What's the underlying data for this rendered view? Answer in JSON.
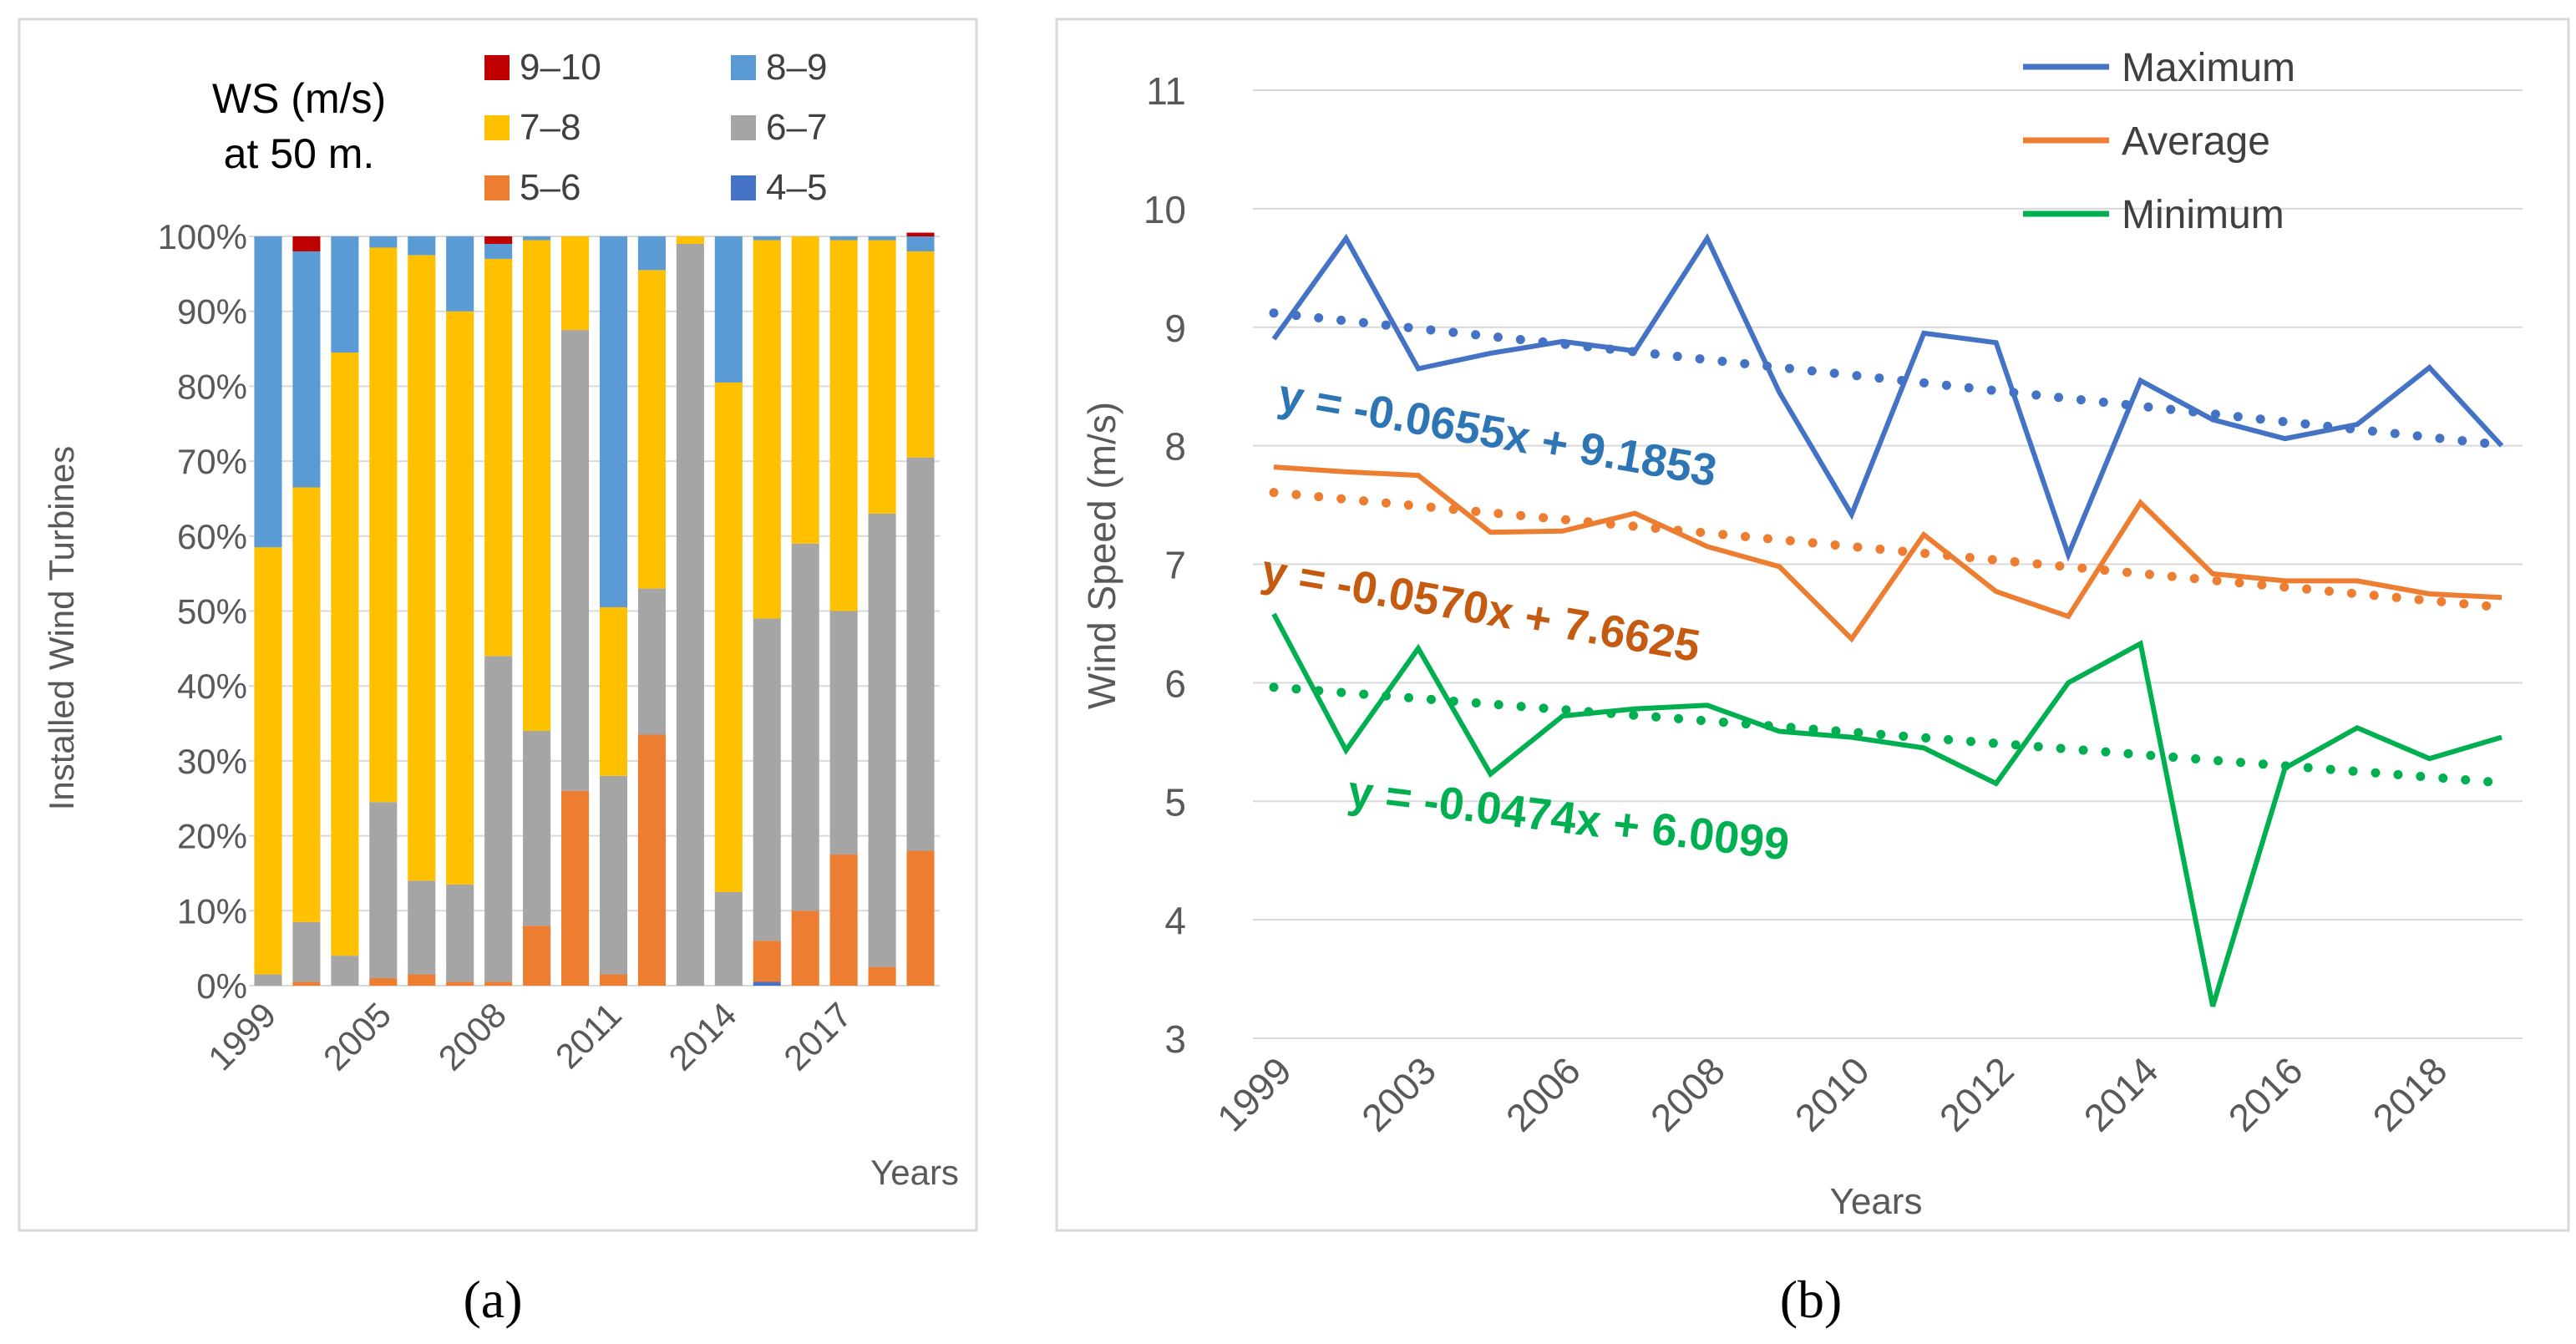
{
  "panel_labels": {
    "a": "(a)",
    "b": "(b)"
  },
  "chart_data": [
    {
      "type": "bar",
      "stacked": true,
      "title": "WS (m/s) at 50 m.",
      "title_lines": [
        "WS (m/s)",
        "at 50 m."
      ],
      "xlabel": "Years",
      "ylabel": "Installed Wind Turbines",
      "ylim": [
        0,
        100
      ],
      "y_ticks": [
        "0%",
        "10%",
        "20%",
        "30%",
        "40%",
        "50%",
        "60%",
        "70%",
        "80%",
        "90%",
        "100%"
      ],
      "x_tick_labels": [
        "1999",
        "2005",
        "2008",
        "2011",
        "2014",
        "2017"
      ],
      "x_tick_indices": [
        0,
        3,
        6,
        9,
        12,
        15
      ],
      "categories": [
        "1999",
        "2001",
        "2003",
        "2005",
        "2006",
        "2007",
        "2008",
        "2009",
        "2010",
        "2011",
        "2012",
        "2013",
        "2014",
        "2015",
        "2016",
        "2017",
        "2018",
        "2019"
      ],
      "legend": [
        {
          "name": "9–10",
          "color": "#c00000"
        },
        {
          "name": "8–9",
          "color": "#5b9bd5"
        },
        {
          "name": "7–8",
          "color": "#ffc000"
        },
        {
          "name": "6–7",
          "color": "#a5a5a5"
        },
        {
          "name": "5–6",
          "color": "#ed7d31"
        },
        {
          "name": "4–5",
          "color": "#4472c4"
        }
      ],
      "series": [
        {
          "name": "4–5",
          "color": "#4472c4",
          "values": [
            0,
            0,
            0,
            0,
            0,
            0,
            0,
            0,
            0,
            0,
            0,
            0,
            0,
            0.5,
            0,
            0,
            0,
            0
          ]
        },
        {
          "name": "5–6",
          "color": "#ed7d31",
          "values": [
            0,
            0.5,
            0,
            1,
            1.5,
            0.5,
            0.5,
            8,
            26,
            1.5,
            33.5,
            0,
            0,
            5.5,
            10,
            17.5,
            2.5,
            18
          ]
        },
        {
          "name": "6–7",
          "color": "#a5a5a5",
          "values": [
            1.5,
            8,
            4,
            23.5,
            12.5,
            13,
            43.5,
            26,
            61.5,
            26.5,
            19.5,
            99,
            12.5,
            43,
            49,
            32.5,
            60.5,
            52.5
          ]
        },
        {
          "name": "7–8",
          "color": "#ffc000",
          "values": [
            57,
            58,
            80.5,
            74,
            83.5,
            76.5,
            53,
            65.5,
            12.5,
            22.5,
            42.5,
            1,
            68,
            50.5,
            41,
            49.5,
            36.5,
            27.5
          ]
        },
        {
          "name": "8–9",
          "color": "#5b9bd5",
          "values": [
            41.5,
            31.5,
            15.5,
            1.5,
            2.5,
            10,
            2,
            0.5,
            0,
            49.5,
            4.5,
            0,
            19.5,
            0.5,
            0,
            0.5,
            0.5,
            2
          ]
        },
        {
          "name": "9–10",
          "color": "#c00000",
          "values": [
            0,
            2,
            0,
            0,
            0,
            0,
            1,
            0,
            0,
            0,
            0,
            0,
            0,
            0,
            0,
            0,
            0,
            0.5
          ]
        }
      ]
    },
    {
      "type": "line",
      "xlabel": "Years",
      "ylabel": "Wind Speed (m/s)",
      "ylim": [
        3,
        11
      ],
      "y_ticks": [
        "3",
        "4",
        "5",
        "6",
        "7",
        "8",
        "9",
        "10",
        "11"
      ],
      "x_tick_labels": [
        "1999",
        "2003",
        "2006",
        "2008",
        "2010",
        "2012",
        "2014",
        "2016",
        "2018"
      ],
      "x_tick_indices": [
        0,
        2,
        4,
        6,
        8,
        10,
        12,
        14,
        16
      ],
      "x": [
        "1999",
        "2001",
        "2003",
        "2005",
        "2006",
        "2007",
        "2008",
        "2009",
        "2010",
        "2011",
        "2012",
        "2013",
        "2014",
        "2015",
        "2016",
        "2017",
        "2018",
        "2019"
      ],
      "series": [
        {
          "name": "Maximum",
          "color": "#4472c4",
          "values": [
            8.9,
            9.75,
            8.65,
            8.78,
            8.88,
            8.8,
            9.75,
            8.45,
            7.42,
            8.95,
            8.87,
            7.08,
            8.55,
            8.22,
            8.06,
            8.18,
            8.66,
            8.0
          ],
          "trend": {
            "slope": -0.0655,
            "intercept": 9.1853,
            "label": "y = -0.0655x + 9.1853",
            "label_color": "#2e75b6"
          }
        },
        {
          "name": "Average",
          "color": "#ed7d31",
          "values": [
            7.82,
            7.78,
            7.75,
            7.27,
            7.28,
            7.43,
            7.15,
            6.98,
            6.37,
            7.25,
            6.77,
            6.56,
            7.52,
            6.92,
            6.86,
            6.86,
            6.75,
            6.72
          ],
          "trend": {
            "slope": -0.057,
            "intercept": 7.6625,
            "label": "y = -0.0570x + 7.6625",
            "label_color": "#c55a11"
          }
        },
        {
          "name": "Minimum",
          "color": "#00b050",
          "values": [
            6.58,
            5.43,
            6.29,
            5.23,
            5.72,
            5.78,
            5.81,
            5.59,
            5.54,
            5.45,
            5.15,
            6.0,
            6.33,
            3.27,
            5.28,
            5.62,
            5.36,
            5.54
          ],
          "trend": {
            "slope": -0.0474,
            "intercept": 6.0099,
            "label": "y = -0.0474x + 6.0099",
            "label_color": "#00b050"
          }
        }
      ]
    }
  ]
}
